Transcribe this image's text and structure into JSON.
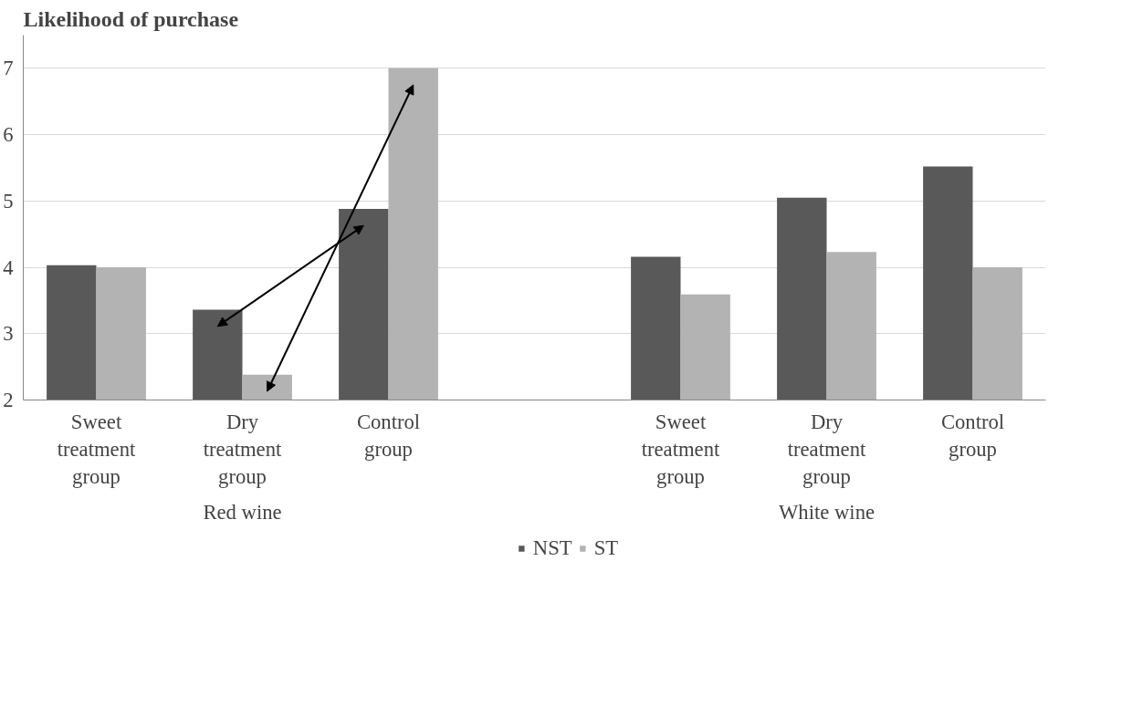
{
  "chart_data": {
    "type": "bar",
    "title": "Likelihood of purchase",
    "categories": [
      "Sweet treatment group",
      "Dry treatment group",
      "Control group",
      null,
      "Sweet treatment group",
      "Dry treatment group",
      "Control group"
    ],
    "annotations": [
      "Red wine",
      "White wine"
    ],
    "series": [
      {
        "name": "NST",
        "color": "#595959",
        "values": [
          4.03,
          3.36,
          4.88,
          null,
          4.16,
          5.05,
          5.52
        ]
      },
      {
        "name": "ST",
        "color": "#b3b3b3",
        "values": [
          4.0,
          2.38,
          7.0,
          null,
          3.59,
          4.23,
          4.0
        ]
      }
    ],
    "ylim": [
      2,
      7.5
    ],
    "yticks": [
      2,
      3,
      4,
      5,
      6,
      7
    ],
    "grid": "y",
    "legend": "bottom"
  }
}
